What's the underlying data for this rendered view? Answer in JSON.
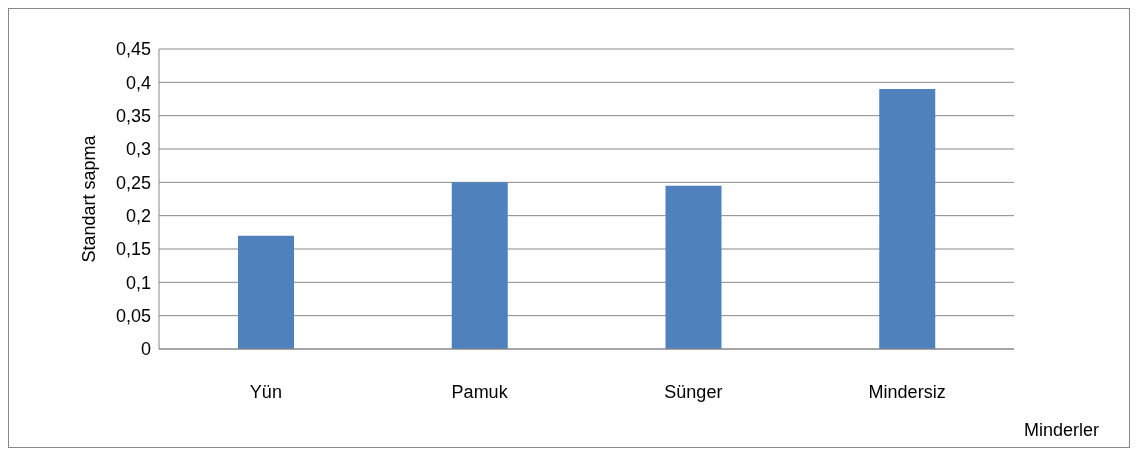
{
  "chart_data": {
    "type": "bar",
    "xlabel": "Minderler",
    "ylabel": "Standart sapma",
    "categories": [
      "Yün",
      "Pamuk",
      "Sünger",
      "Mindersiz"
    ],
    "values": [
      0.17,
      0.25,
      0.245,
      0.39
    ],
    "color": "#4f81bd",
    "ylim": [
      0,
      0.45
    ],
    "yticks": [
      0,
      {
        "value": 0.05,
        "label": "0,05"
      },
      {
        "value": 0.1,
        "label": "0,1"
      },
      {
        "value": 0.15,
        "label": "0,15"
      },
      {
        "value": 0.2,
        "label": "0,2"
      },
      {
        "value": 0.25,
        "label": "0,25"
      },
      {
        "value": 0.3,
        "label": "0,3"
      },
      {
        "value": 0.35,
        "label": "0,35"
      },
      {
        "value": 0.4,
        "label": "0,4"
      },
      {
        "value": 0.45,
        "label": "0,45"
      }
    ],
    "grid": "y",
    "legend": false
  }
}
